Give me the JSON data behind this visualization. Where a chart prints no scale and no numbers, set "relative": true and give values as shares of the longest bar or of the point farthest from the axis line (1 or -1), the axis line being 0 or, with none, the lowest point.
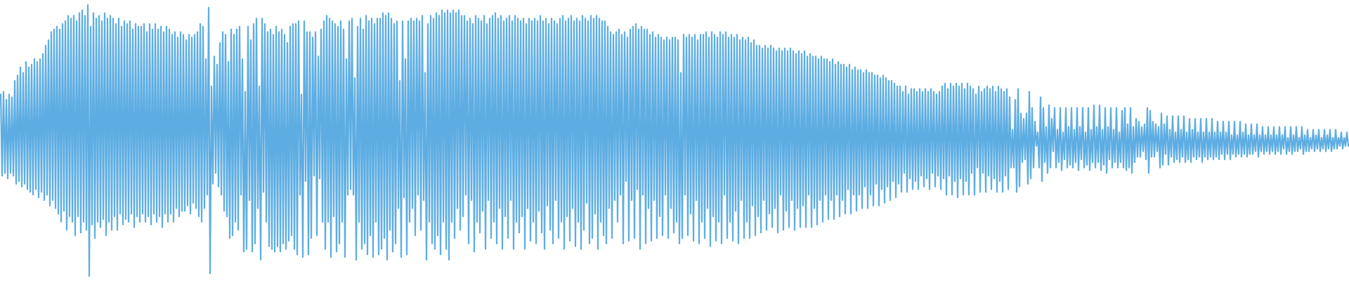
{
  "chart_data": {
    "type": "line",
    "relative": true,
    "color": "#5dade2",
    "categories": [
      null,
      null,
      null,
      null,
      null,
      null,
      null,
      null,
      null,
      null,
      null,
      null,
      null,
      null,
      null,
      null,
      null,
      null,
      null,
      null,
      null,
      null,
      null,
      null,
      null,
      null,
      null,
      null,
      null,
      null,
      null,
      null,
      null,
      null,
      null,
      null,
      null,
      null,
      null,
      null,
      null,
      null,
      null,
      null,
      null,
      null,
      null,
      null,
      null,
      null,
      null,
      null,
      null,
      null,
      null,
      null,
      null,
      null,
      null,
      null,
      null,
      null,
      null,
      null,
      null,
      null,
      null,
      null,
      null,
      null,
      null,
      null,
      null,
      null,
      null,
      null,
      null,
      null,
      null,
      null,
      null,
      null,
      null,
      null,
      null,
      null,
      null,
      null,
      null,
      null,
      null,
      null,
      null,
      null,
      null,
      null,
      null,
      null,
      null,
      null,
      null,
      null,
      null,
      null,
      null,
      null,
      null,
      null,
      null,
      null,
      null,
      null,
      null,
      null,
      null,
      null,
      null,
      null,
      null,
      null,
      null,
      null,
      null,
      null,
      null,
      null,
      null,
      null,
      null,
      null,
      null,
      null,
      null,
      null,
      null,
      null,
      null,
      null,
      null,
      null,
      null,
      null,
      null,
      null,
      null,
      null,
      null,
      null,
      null,
      null,
      null,
      null,
      null,
      null,
      null,
      null,
      null,
      null,
      null,
      null,
      null,
      null,
      null,
      null,
      null,
      null,
      null,
      null,
      null,
      null,
      null,
      null,
      null,
      null,
      null,
      null,
      null,
      null,
      null,
      null,
      null,
      null,
      null,
      null,
      null,
      null,
      null,
      null,
      null,
      null,
      null,
      null,
      null,
      null,
      null,
      null,
      null,
      null,
      null,
      null,
      null,
      null,
      null,
      null,
      null,
      null,
      null,
      null,
      null,
      null,
      null,
      null,
      null,
      null,
      null,
      null,
      null,
      null,
      null,
      null,
      null,
      null,
      null,
      null,
      null,
      null,
      null,
      null,
      null,
      null,
      null,
      null,
      null,
      null,
      null,
      null,
      null,
      null,
      null,
      null,
      null,
      null,
      null,
      null,
      null,
      null,
      null,
      null,
      null,
      null,
      null,
      null,
      null,
      null,
      null,
      null,
      null,
      null,
      null,
      null,
      null,
      null,
      null,
      null,
      null,
      null,
      null,
      null,
      null,
      null,
      null,
      null,
      null,
      null,
      null,
      null,
      null,
      null,
      null,
      null,
      null,
      null,
      null,
      null,
      null,
      null,
      null,
      null,
      null,
      null,
      null,
      null,
      null,
      null,
      null,
      null,
      null,
      null,
      null,
      null,
      null,
      null,
      null,
      null,
      null,
      null,
      null,
      null,
      null,
      null,
      null,
      null,
      null,
      null,
      null,
      null,
      null,
      null,
      null,
      null,
      null,
      null,
      null,
      null,
      null,
      null,
      null,
      null,
      null,
      null,
      null,
      null,
      null,
      null,
      null,
      null,
      null,
      null,
      null,
      null,
      null,
      null,
      null,
      null,
      null,
      null,
      null,
      null,
      null,
      null,
      null,
      null,
      null,
      null,
      null,
      null,
      null,
      null,
      null,
      null,
      null,
      null,
      null,
      null,
      null,
      null,
      null,
      null,
      null,
      null,
      null,
      null,
      null,
      null,
      null,
      null,
      null,
      null,
      null,
      null,
      null,
      null,
      null,
      null,
      null,
      null,
      null,
      null,
      null,
      null,
      null,
      null,
      null,
      null,
      null,
      null,
      null,
      null,
      null,
      null,
      null,
      null,
      null,
      null,
      null,
      null,
      null,
      null,
      null,
      null,
      null,
      null,
      null,
      null,
      null,
      null,
      null,
      null,
      null,
      null,
      null,
      null,
      null,
      null,
      null,
      null,
      null,
      null,
      null,
      null,
      null,
      null,
      null,
      null,
      null,
      null,
      null,
      null,
      null,
      null,
      null,
      null,
      null,
      null,
      null,
      null,
      null,
      null,
      null,
      null,
      null,
      null,
      null,
      null,
      null,
      null,
      null,
      null,
      null,
      null,
      null,
      null,
      null,
      null,
      null,
      null,
      null,
      null,
      null,
      null,
      null,
      null,
      null,
      null,
      null,
      null,
      null,
      null,
      null,
      null,
      null,
      null,
      null,
      null,
      null,
      null,
      null,
      null,
      null,
      null,
      null,
      null,
      null,
      null,
      null,
      null,
      null,
      null,
      null,
      null,
      null,
      null,
      null,
      null,
      null,
      null,
      null,
      null,
      null,
      null,
      null,
      null,
      null,
      null,
      null,
      null,
      null,
      null,
      null,
      null,
      null,
      null,
      null,
      null,
      null,
      null,
      null,
      null,
      null,
      null,
      null,
      null,
      null,
      null,
      null,
      null,
      null,
      null,
      null,
      null,
      null,
      null,
      null,
      null,
      null,
      null,
      null,
      null,
      null,
      null,
      null,
      null,
      null,
      null,
      null,
      null,
      null,
      null,
      null,
      null,
      null,
      null,
      null,
      null,
      null,
      null,
      null,
      null,
      null,
      null,
      null,
      null,
      null,
      null,
      null,
      null,
      null,
      null,
      null,
      null,
      null,
      null,
      null,
      null,
      null,
      null,
      null,
      null,
      null,
      null,
      null,
      null,
      null,
      null,
      null,
      null,
      null,
      null,
      null,
      null,
      null,
      null,
      null,
      null,
      null,
      null,
      null,
      null,
      null,
      null,
      null,
      null,
      null,
      null,
      null,
      null,
      null,
      null,
      null,
      null,
      null,
      null,
      null,
      null,
      null,
      null,
      null,
      null,
      null,
      null,
      null,
      null,
      null,
      null,
      null,
      null,
      null,
      null,
      null,
      null,
      null,
      null,
      null,
      null,
      null,
      null,
      null,
      null,
      null,
      null,
      null,
      null,
      null,
      null,
      null,
      null,
      null,
      null,
      null,
      null,
      null,
      null,
      null,
      null,
      null,
      null,
      null,
      null,
      null,
      null,
      null,
      null,
      null,
      null,
      null,
      null,
      null,
      null,
      null,
      null,
      null,
      null,
      null,
      null,
      null,
      null,
      null,
      null,
      null,
      null,
      null,
      null,
      null,
      null,
      null,
      null,
      null,
      null,
      null,
      null,
      null,
      null,
      null,
      null,
      null,
      null,
      null,
      null,
      null,
      null,
      null,
      null,
      null,
      null,
      null,
      null,
      null,
      null,
      null,
      null,
      null,
      null,
      null,
      null,
      null,
      null,
      null,
      null,
      null,
      null,
      null,
      null,
      null,
      null,
      null,
      null,
      null,
      null,
      null,
      null,
      null,
      null,
      null,
      null,
      null,
      null,
      null,
      null,
      null,
      null,
      null,
      null,
      null,
      null,
      null,
      null,
      null,
      null,
      null,
      null,
      null,
      null,
      null,
      null,
      null,
      null,
      null,
      null,
      null,
      null,
      null,
      null,
      null,
      null,
      null,
      null,
      null,
      null,
      null,
      null,
      null,
      null,
      null,
      null,
      null,
      null,
      null,
      null,
      null,
      null,
      null,
      null,
      null,
      null,
      null,
      null,
      null,
      null,
      null,
      null,
      null,
      null,
      null,
      null,
      null,
      null,
      null,
      null,
      null,
      null,
      null,
      null,
      null,
      null,
      null,
      null,
      null,
      null,
      null,
      null,
      null,
      null,
      null,
      null,
      null,
      null,
      null,
      null,
      null,
      null,
      null,
      null,
      null,
      null,
      null,
      null,
      null,
      null,
      null,
      null,
      null,
      null,
      null,
      null,
      null,
      null,
      null,
      null,
      null,
      null,
      null,
      null,
      null,
      null,
      null,
      null,
      null,
      null,
      null,
      null,
      null,
      null,
      null,
      null,
      null,
      null,
      null,
      null,
      null,
      null,
      null,
      null,
      null,
      null,
      null,
      null,
      null,
      null,
      null,
      null,
      null,
      null,
      null,
      null,
      null,
      null,
      null,
      null,
      null,
      null,
      null,
      null,
      null,
      null,
      null,
      null,
      null,
      null,
      null,
      null,
      null,
      null,
      null,
      null,
      null,
      null,
      null,
      null,
      null,
      null,
      null,
      null,
      null,
      null,
      null,
      null,
      null,
      null,
      null,
      null,
      null,
      null,
      null,
      null,
      null,
      null,
      null,
      null,
      null,
      null,
      null,
      null,
      null,
      null,
      null,
      null,
      null,
      null,
      null,
      null,
      null,
      null,
      null,
      null,
      null,
      null,
      null,
      null,
      null,
      null,
      null,
      null,
      null,
      null,
      null,
      null,
      null,
      null,
      null,
      null
    ],
    "values": [
      0.67,
      0.37,
      0.68,
      0.38,
      0.65,
      0.36,
      0.67,
      0.38,
      0.66,
      0.37,
      0.72,
      0.34,
      0.74,
      0.35,
      0.77,
      0.33,
      0.75,
      0.34,
      0.79,
      0.32,
      0.77,
      0.31,
      0.78,
      0.3,
      0.8,
      0.32,
      0.79,
      0.29,
      0.8,
      0.31,
      0.82,
      0.28,
      0.85,
      0.3,
      0.87,
      0.26,
      0.9,
      0.28,
      0.91,
      0.25,
      0.92,
      0.23,
      0.91,
      0.2,
      0.93,
      0.24,
      0.94,
      0.17,
      0.96,
      0.22,
      0.95,
      0.2,
      0.96,
      0.15,
      0.94,
      0.22,
      0.97,
      0.16,
      0.98,
      0.2,
      0.96,
      0.17,
      1.0,
      0.0,
      0.92,
      0.19,
      0.97,
      0.14,
      0.95,
      0.2,
      0.96,
      0.18,
      0.94,
      0.21,
      0.97,
      0.15,
      0.95,
      0.2,
      0.96,
      0.17,
      0.95,
      0.22,
      0.93,
      0.17,
      0.95,
      0.23,
      0.92,
      0.19,
      0.94,
      0.21,
      0.93,
      0.2,
      0.94,
      0.23,
      0.91,
      0.18,
      0.93,
      0.22,
      0.92,
      0.2,
      0.92,
      0.23,
      0.93,
      0.2,
      0.9,
      0.22,
      0.93,
      0.19,
      0.91,
      0.23,
      0.93,
      0.2,
      0.91,
      0.22,
      0.92,
      0.18,
      0.9,
      0.23,
      0.92,
      0.2,
      0.91,
      0.23,
      0.89,
      0.2,
      0.9,
      0.25,
      0.88,
      0.22,
      0.9,
      0.24,
      0.89,
      0.24,
      0.87,
      0.26,
      0.89,
      0.23,
      0.88,
      0.27,
      0.89,
      0.25,
      0.9,
      0.22,
      0.93,
      0.2,
      0.92,
      0.25,
      0.8,
      0.3,
      0.99,
      0.01,
      0.7,
      0.34,
      0.81,
      0.38,
      0.78,
      0.33,
      0.86,
      0.3,
      0.9,
      0.24,
      0.89,
      0.22,
      0.79,
      0.14,
      0.91,
      0.15,
      0.89,
      0.2,
      0.91,
      0.17,
      0.92,
      0.3,
      0.8,
      0.09,
      0.68,
      0.1,
      0.92,
      0.28,
      0.87,
      0.09,
      0.93,
      0.12,
      0.95,
      0.25,
      0.7,
      0.06,
      0.95,
      0.31,
      0.93,
      0.2,
      0.9,
      0.11,
      0.91,
      0.1,
      0.89,
      0.09,
      0.92,
      0.11,
      0.9,
      0.09,
      0.91,
      0.12,
      0.89,
      0.1,
      0.86,
      0.13,
      0.92,
      0.15,
      0.93,
      0.1,
      0.93,
      0.08,
      0.94,
      0.3,
      0.67,
      0.07,
      0.94,
      0.35,
      0.9,
      0.08,
      0.9,
      0.14,
      0.88,
      0.37,
      0.9,
      0.15,
      0.81,
      0.36,
      0.91,
      0.2,
      0.94,
      0.1,
      0.96,
      0.2,
      0.95,
      0.07,
      0.94,
      0.22,
      0.93,
      0.09,
      0.92,
      0.12,
      0.94,
      0.2,
      0.91,
      0.07,
      0.8,
      0.3,
      0.94,
      0.32,
      0.95,
      0.3,
      0.73,
      0.06,
      0.92,
      0.2,
      0.95,
      0.1,
      0.91,
      0.12,
      0.96,
      0.08,
      0.94,
      0.15,
      0.95,
      0.07,
      0.93,
      0.2,
      0.95,
      0.08,
      0.95,
      0.1,
      0.97,
      0.14,
      0.96,
      0.06,
      0.97,
      0.17,
      0.95,
      0.09,
      0.93,
      0.12,
      0.94,
      0.25,
      0.72,
      0.07,
      0.94,
      0.29,
      0.8,
      0.08,
      0.94,
      0.2,
      0.95,
      0.25,
      0.94,
      0.15,
      0.95,
      0.3,
      0.94,
      0.17,
      0.96,
      0.28,
      0.75,
      0.06,
      0.93,
      0.2,
      0.96,
      0.12,
      0.95,
      0.1,
      0.97,
      0.15,
      0.96,
      0.08,
      0.98,
      0.2,
      0.97,
      0.1,
      0.98,
      0.06,
      0.97,
      0.2,
      0.98,
      0.14,
      0.97,
      0.25,
      0.98,
      0.17,
      0.96,
      0.22,
      0.96,
      0.3,
      0.94,
      0.12,
      0.95,
      0.28,
      0.93,
      0.09,
      0.96,
      0.2,
      0.95,
      0.16,
      0.94,
      0.24,
      0.96,
      0.1,
      0.93,
      0.28,
      0.95,
      0.14,
      0.96,
      0.2,
      0.97,
      0.12,
      0.95,
      0.25,
      0.96,
      0.1,
      0.94,
      0.22,
      0.95,
      0.14,
      0.96,
      0.28,
      0.94,
      0.1,
      0.96,
      0.2,
      0.95,
      0.16,
      0.94,
      0.22,
      0.95,
      0.1,
      0.93,
      0.25,
      0.95,
      0.13,
      0.94,
      0.2,
      0.95,
      0.12,
      0.94,
      0.24,
      0.96,
      0.16,
      0.94,
      0.1,
      0.95,
      0.26,
      0.93,
      0.17,
      0.95,
      0.12,
      0.94,
      0.28,
      0.93,
      0.14,
      0.95,
      0.2,
      0.96,
      0.1,
      0.94,
      0.22,
      0.95,
      0.13,
      0.96,
      0.25,
      0.94,
      0.11,
      0.95,
      0.2,
      0.94,
      0.1,
      0.96,
      0.17,
      0.95,
      0.27,
      0.94,
      0.12,
      0.96,
      0.14,
      0.95,
      0.23,
      0.96,
      0.1,
      0.95,
      0.2,
      0.94,
      0.15,
      0.94,
      0.12,
      0.92,
      0.25,
      0.9,
      0.14,
      0.89,
      0.28,
      0.9,
      0.2,
      0.91,
      0.3,
      0.89,
      0.12,
      0.9,
      0.35,
      0.88,
      0.13,
      0.91,
      0.28,
      0.92,
      0.14,
      0.93,
      0.32,
      0.91,
      0.1,
      0.92,
      0.3,
      0.91,
      0.12,
      0.91,
      0.25,
      0.89,
      0.13,
      0.9,
      0.28,
      0.88,
      0.14,
      0.89,
      0.22,
      0.88,
      0.15,
      0.87,
      0.3,
      0.88,
      0.14,
      0.87,
      0.25,
      0.88,
      0.16,
      0.88,
      0.2,
      0.87,
      0.12,
      0.75,
      0.14,
      0.89,
      0.3,
      0.88,
      0.15,
      0.89,
      0.23,
      0.88,
      0.13,
      0.89,
      0.28,
      0.87,
      0.12,
      0.89,
      0.2,
      0.89,
      0.14,
      0.9,
      0.25,
      0.88,
      0.11,
      0.9,
      0.22,
      0.89,
      0.13,
      0.88,
      0.2,
      0.9,
      0.12,
      0.89,
      0.3,
      0.9,
      0.14,
      0.88,
      0.2,
      0.89,
      0.13,
      0.88,
      0.24,
      0.89,
      0.12,
      0.87,
      0.28,
      0.88,
      0.14,
      0.87,
      0.2,
      0.88,
      0.14,
      0.86,
      0.26,
      0.87,
      0.15,
      0.85,
      0.22,
      0.85,
      0.16,
      0.84,
      0.28,
      0.85,
      0.17,
      0.84,
      0.23,
      0.85,
      0.18,
      0.84,
      0.25,
      0.83,
      0.16,
      0.84,
      0.3,
      0.83,
      0.17,
      0.84,
      0.24,
      0.83,
      0.18,
      0.84,
      0.28,
      0.83,
      0.17,
      0.82,
      0.25,
      0.83,
      0.18,
      0.82,
      0.26,
      0.83,
      0.18,
      0.81,
      0.3,
      0.82,
      0.18,
      0.81,
      0.25,
      0.81,
      0.19,
      0.8,
      0.28,
      0.81,
      0.2,
      0.8,
      0.3,
      0.8,
      0.21,
      0.79,
      0.28,
      0.8,
      0.21,
      0.78,
      0.3,
      0.79,
      0.22,
      0.78,
      0.28,
      0.78,
      0.23,
      0.77,
      0.32,
      0.78,
      0.23,
      0.76,
      0.3,
      0.77,
      0.24,
      0.76,
      0.3,
      0.76,
      0.25,
      0.75,
      0.33,
      0.76,
      0.25,
      0.75,
      0.3,
      0.75,
      0.26,
      0.74,
      0.34,
      0.74,
      0.26,
      0.73,
      0.32,
      0.74,
      0.27,
      0.73,
      0.33,
      0.72,
      0.28,
      0.72,
      0.35,
      0.71,
      0.29,
      0.7,
      0.34,
      0.7,
      0.31,
      0.68,
      0.38,
      0.7,
      0.31,
      0.67,
      0.36,
      0.69,
      0.32,
      0.69,
      0.35,
      0.68,
      0.32,
      0.69,
      0.37,
      0.68,
      0.33,
      0.69,
      0.36,
      0.68,
      0.32,
      0.69,
      0.38,
      0.68,
      0.33,
      0.67,
      0.37,
      0.68,
      0.32,
      0.7,
      0.36,
      0.71,
      0.3,
      0.69,
      0.37,
      0.71,
      0.3,
      0.7,
      0.35,
      0.71,
      0.29,
      0.7,
      0.36,
      0.71,
      0.3,
      0.69,
      0.35,
      0.71,
      0.3,
      0.7,
      0.38,
      0.69,
      0.3,
      0.67,
      0.4,
      0.7,
      0.31,
      0.68,
      0.38,
      0.69,
      0.31,
      0.7,
      0.37,
      0.69,
      0.32,
      0.7,
      0.36,
      0.68,
      0.31,
      0.7,
      0.35,
      0.69,
      0.31,
      0.68,
      0.37,
      0.69,
      0.32,
      0.66,
      0.4,
      0.54,
      0.4,
      0.65,
      0.31,
      0.69,
      0.33,
      0.6,
      0.42,
      0.58,
      0.43,
      0.6,
      0.34,
      0.68,
      0.36,
      0.62,
      0.4,
      0.57,
      0.48,
      0.53,
      0.4,
      0.66,
      0.35,
      0.62,
      0.42,
      0.55,
      0.38,
      0.63,
      0.4,
      0.58,
      0.46,
      0.62,
      0.4,
      0.54,
      0.42,
      0.62,
      0.39,
      0.53,
      0.43,
      0.62,
      0.4,
      0.55,
      0.41,
      0.62,
      0.4,
      0.54,
      0.42,
      0.62,
      0.39,
      0.55,
      0.43,
      0.62,
      0.4,
      0.53,
      0.41,
      0.62,
      0.39,
      0.54,
      0.42,
      0.63,
      0.4,
      0.55,
      0.42,
      0.63,
      0.39,
      0.54,
      0.41,
      0.62,
      0.38,
      0.55,
      0.43,
      0.62,
      0.4,
      0.54,
      0.42,
      0.62,
      0.4,
      0.53,
      0.42,
      0.61,
      0.4,
      0.62,
      0.39,
      0.56,
      0.4,
      0.62,
      0.38,
      0.55,
      0.42,
      0.58,
      0.44,
      0.57,
      0.44,
      0.55,
      0.46,
      0.56,
      0.43,
      0.62,
      0.38,
      0.61,
      0.44,
      0.57,
      0.44,
      0.56,
      0.46,
      0.55,
      0.4,
      0.6,
      0.41,
      0.56,
      0.45,
      0.59,
      0.41,
      0.54,
      0.44,
      0.59,
      0.42,
      0.53,
      0.43,
      0.59,
      0.42,
      0.54,
      0.44,
      0.59,
      0.42,
      0.53,
      0.43,
      0.58,
      0.42,
      0.54,
      0.44,
      0.58,
      0.43,
      0.53,
      0.44,
      0.58,
      0.42,
      0.53,
      0.44,
      0.58,
      0.43,
      0.53,
      0.44,
      0.58,
      0.43,
      0.53,
      0.44,
      0.57,
      0.43,
      0.53,
      0.45,
      0.57,
      0.43,
      0.53,
      0.45,
      0.57,
      0.43,
      0.52,
      0.45,
      0.57,
      0.44,
      0.52,
      0.45,
      0.57,
      0.44,
      0.53,
      0.45,
      0.56,
      0.44,
      0.52,
      0.45,
      0.56,
      0.45,
      0.52,
      0.46,
      0.56,
      0.44,
      0.52,
      0.46,
      0.55,
      0.45,
      0.52,
      0.46,
      0.55,
      0.45,
      0.52,
      0.46,
      0.55,
      0.45,
      0.52,
      0.46,
      0.55,
      0.45,
      0.52,
      0.47,
      0.55,
      0.45,
      0.51,
      0.46,
      0.55,
      0.45,
      0.52,
      0.46,
      0.55,
      0.46,
      0.51,
      0.47,
      0.55,
      0.45,
      0.52,
      0.46,
      0.54,
      0.46,
      0.51,
      0.47,
      0.54,
      0.46,
      0.52,
      0.47,
      0.54,
      0.46,
      0.51,
      0.47,
      0.54,
      0.46,
      0.52,
      0.47,
      0.54,
      0.46,
      0.51,
      0.47,
      0.54,
      0.47,
      0.51,
      0.48,
      0.53,
      0.47,
      0.51,
      0.48,
      0.53,
      0.48
    ]
  }
}
